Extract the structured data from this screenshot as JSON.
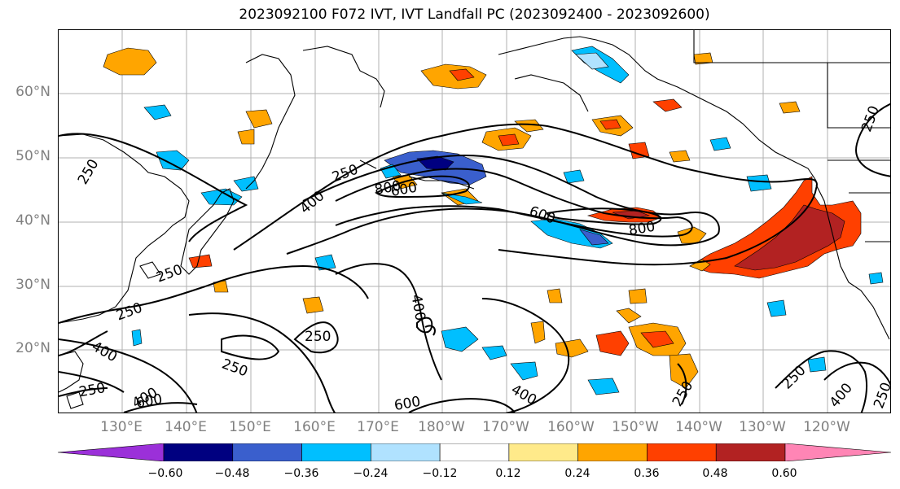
{
  "title": "2023092100 F072 IVT, IVT Landfall PC (2023092400 - 2023092600)",
  "lat_labels": [
    "60°N",
    "50°N",
    "40°N",
    "30°N",
    "20°N"
  ],
  "lon_labels": [
    "130°E",
    "140°E",
    "150°E",
    "160°E",
    "170°E",
    "180°W",
    "170°W",
    "160°W",
    "150°W",
    "140°W",
    "130°W",
    "120°W"
  ],
  "colorbar": {
    "ticks": [
      "−0.60",
      "−0.48",
      "−0.36",
      "−0.24",
      "−0.12",
      "0.12",
      "0.24",
      "0.36",
      "0.48",
      "0.60"
    ],
    "colors": [
      "#9b30d9",
      "#000080",
      "#3a5fcd",
      "#00bfff",
      "#b0e2ff",
      "#ffffff",
      "#ffea8a",
      "#ffa500",
      "#ff4000",
      "#b22222",
      "#ff85b5"
    ]
  },
  "contour_labels": [
    "250",
    "400",
    "600",
    "800"
  ],
  "labels_on_map": {
    "c250_a": "250",
    "c250_b": "250",
    "c250_c": "250",
    "c250_d": "250",
    "c250_e": "250",
    "c250_f": "250",
    "c250_g": "250",
    "c250_h": "250",
    "c250_i": "250",
    "c250_j": "250",
    "c400_a": "400",
    "c400_b": "400",
    "c400_c": "400",
    "c400_d": "400",
    "c400_e": "400",
    "c400_f": "400",
    "c600_a": "600",
    "c600_b": "600",
    "c600_c": "600",
    "c800_a": "800",
    "c800_b": "800",
    "c800_c": "800"
  }
}
